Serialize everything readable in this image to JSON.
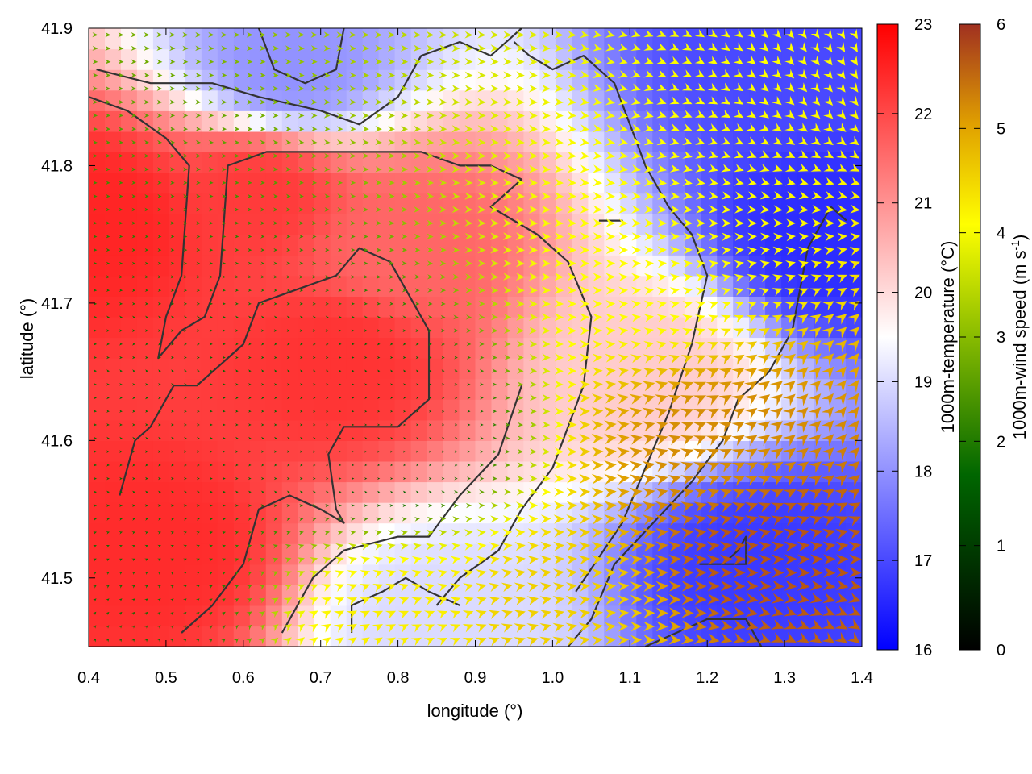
{
  "chart_data": {
    "type": "heatmap",
    "xlabel": "longitude (°)",
    "ylabel": "latitude (°)",
    "xlim": [
      0.4,
      1.4
    ],
    "ylim": [
      41.45,
      41.9
    ],
    "x_ticks": [
      "0.4",
      "0.5",
      "0.6",
      "0.7",
      "0.8",
      "0.9",
      "1.0",
      "1.1",
      "1.2",
      "1.3",
      "1.4"
    ],
    "y_ticks": [
      "41.5",
      "41.6",
      "41.7",
      "41.8",
      "41.9"
    ],
    "temperature": {
      "label": "1000m-temperature (°C)",
      "range": [
        16,
        23
      ],
      "ticks": [
        "16",
        "17",
        "18",
        "19",
        "20",
        "21",
        "22",
        "23"
      ],
      "colors": [
        "#0000ff",
        "#ffffff",
        "#ff0000"
      ],
      "hotspots": [
        {
          "lon": 0.42,
          "lat": 41.76,
          "temp": 22.5
        },
        {
          "lon": 0.62,
          "lat": 41.78,
          "temp": 22.2
        },
        {
          "lon": 0.72,
          "lat": 41.66,
          "temp": 22.3
        },
        {
          "lon": 0.48,
          "lat": 41.52,
          "temp": 22.4
        },
        {
          "lon": 0.8,
          "lat": 41.74,
          "temp": 21.6
        },
        {
          "lon": 0.66,
          "lat": 41.87,
          "temp": 18.0
        },
        {
          "lon": 1.3,
          "lat": 41.88,
          "temp": 17.0
        },
        {
          "lon": 1.36,
          "lat": 41.75,
          "temp": 16.6
        },
        {
          "lon": 1.27,
          "lat": 41.51,
          "temp": 16.8
        },
        {
          "lon": 0.86,
          "lat": 41.47,
          "temp": 19.0
        },
        {
          "lon": 1.12,
          "lat": 41.65,
          "temp": 20.2
        }
      ]
    },
    "wind_speed": {
      "label": "1000m-wind speed (m s-1)",
      "label_main": "1000m-wind speed (m s",
      "label_sup": "-1",
      "label_close": ")",
      "range": [
        0,
        6
      ],
      "ticks": [
        "0",
        "1",
        "2",
        "3",
        "4",
        "5",
        "6"
      ],
      "colors": [
        "#000000",
        "#006600",
        "#88bb00",
        "#ffff00",
        "#e0a000",
        "#a03020"
      ],
      "hotspots": [
        {
          "lon": 1.28,
          "lat": 41.52,
          "speed": 5.6
        },
        {
          "lon": 1.22,
          "lat": 41.6,
          "speed": 5.0
        },
        {
          "lon": 1.0,
          "lat": 41.47,
          "speed": 4.2
        },
        {
          "lon": 0.8,
          "lat": 41.47,
          "speed": 3.8
        },
        {
          "lon": 1.15,
          "lat": 41.72,
          "speed": 3.6
        },
        {
          "lon": 0.55,
          "lat": 41.6,
          "speed": 1.2
        },
        {
          "lon": 0.78,
          "lat": 41.6,
          "speed": 1.0
        },
        {
          "lon": 0.45,
          "lat": 41.48,
          "speed": 1.3
        }
      ]
    },
    "contours": [
      [
        [
          0.41,
          41.87
        ],
        [
          0.48,
          41.86
        ],
        [
          0.56,
          41.86
        ],
        [
          0.62,
          41.85
        ],
        [
          0.7,
          41.84
        ],
        [
          0.75,
          41.83
        ],
        [
          0.8,
          41.85
        ],
        [
          0.83,
          41.88
        ],
        [
          0.88,
          41.89
        ],
        [
          0.92,
          41.88
        ],
        [
          0.96,
          41.9
        ]
      ],
      [
        [
          0.4,
          41.85
        ],
        [
          0.45,
          41.84
        ],
        [
          0.5,
          41.82
        ],
        [
          0.53,
          41.8
        ],
        [
          0.52,
          41.72
        ],
        [
          0.5,
          41.69
        ],
        [
          0.49,
          41.66
        ],
        [
          0.52,
          41.68
        ],
        [
          0.55,
          41.69
        ],
        [
          0.57,
          41.72
        ],
        [
          0.58,
          41.8
        ],
        [
          0.63,
          41.81
        ],
        [
          0.7,
          41.81
        ],
        [
          0.77,
          41.81
        ],
        [
          0.83,
          41.81
        ],
        [
          0.88,
          41.8
        ],
        [
          0.92,
          41.8
        ],
        [
          0.96,
          41.79
        ],
        [
          0.92,
          41.77
        ],
        [
          0.98,
          41.75
        ],
        [
          1.02,
          41.73
        ],
        [
          1.05,
          41.69
        ],
        [
          1.04,
          41.64
        ],
        [
          1.0,
          41.58
        ],
        [
          0.96,
          41.55
        ],
        [
          0.93,
          41.52
        ],
        [
          0.88,
          41.5
        ],
        [
          0.85,
          41.48
        ]
      ],
      [
        [
          0.51,
          41.64
        ],
        [
          0.54,
          41.64
        ],
        [
          0.6,
          41.67
        ],
        [
          0.62,
          41.7
        ],
        [
          0.67,
          41.71
        ],
        [
          0.72,
          41.72
        ],
        [
          0.75,
          41.74
        ],
        [
          0.79,
          41.73
        ],
        [
          0.84,
          41.68
        ],
        [
          0.84,
          41.63
        ],
        [
          0.8,
          41.61
        ],
        [
          0.73,
          41.61
        ],
        [
          0.71,
          41.59
        ],
        [
          0.72,
          41.55
        ],
        [
          0.73,
          41.54
        ],
        [
          0.7,
          41.55
        ],
        [
          0.66,
          41.56
        ],
        [
          0.62,
          41.55
        ],
        [
          0.6,
          41.51
        ],
        [
          0.56,
          41.48
        ],
        [
          0.52,
          41.46
        ]
      ],
      [
        [
          0.44,
          41.56
        ],
        [
          0.46,
          41.6
        ],
        [
          0.48,
          41.61
        ],
        [
          0.5,
          41.63
        ],
        [
          0.51,
          41.64
        ]
      ],
      [
        [
          0.65,
          41.46
        ],
        [
          0.69,
          41.5
        ],
        [
          0.73,
          41.52
        ],
        [
          0.8,
          41.53
        ],
        [
          0.84,
          41.53
        ],
        [
          0.88,
          41.56
        ],
        [
          0.93,
          41.59
        ],
        [
          0.96,
          41.64
        ]
      ],
      [
        [
          0.74,
          41.46
        ],
        [
          0.74,
          41.48
        ],
        [
          0.78,
          41.49
        ],
        [
          0.81,
          41.5
        ],
        [
          0.84,
          41.49
        ],
        [
          0.88,
          41.48
        ]
      ],
      [
        [
          1.02,
          41.45
        ],
        [
          1.05,
          41.47
        ],
        [
          1.08,
          41.51
        ],
        [
          1.13,
          41.54
        ],
        [
          1.18,
          41.57
        ],
        [
          1.22,
          41.6
        ],
        [
          1.24,
          41.63
        ],
        [
          1.28,
          41.65
        ],
        [
          1.31,
          41.68
        ],
        [
          1.32,
          41.71
        ],
        [
          1.33,
          41.74
        ],
        [
          1.36,
          41.77
        ],
        [
          1.38,
          41.76
        ]
      ],
      [
        [
          1.03,
          41.49
        ],
        [
          1.09,
          41.54
        ],
        [
          1.12,
          41.58
        ],
        [
          1.15,
          41.62
        ],
        [
          1.18,
          41.67
        ],
        [
          1.2,
          41.72
        ],
        [
          1.18,
          41.75
        ],
        [
          1.15,
          41.77
        ],
        [
          1.12,
          41.8
        ],
        [
          1.1,
          41.83
        ],
        [
          1.08,
          41.86
        ],
        [
          1.04,
          41.88
        ],
        [
          1.0,
          41.87
        ],
        [
          0.97,
          41.88
        ],
        [
          0.95,
          41.89
        ]
      ],
      [
        [
          1.12,
          41.45
        ],
        [
          1.16,
          41.46
        ],
        [
          1.2,
          41.47
        ],
        [
          1.25,
          41.47
        ],
        [
          1.27,
          41.45
        ]
      ],
      [
        [
          1.19,
          41.51
        ],
        [
          1.23,
          41.51
        ],
        [
          1.25,
          41.51
        ],
        [
          1.25,
          41.53
        ],
        [
          1.24,
          41.52
        ],
        [
          1.22,
          41.51
        ]
      ],
      [
        [
          0.62,
          41.9
        ],
        [
          0.64,
          41.87
        ],
        [
          0.68,
          41.86
        ],
        [
          0.72,
          41.87
        ],
        [
          0.73,
          41.9
        ]
      ],
      [
        [
          1.06,
          41.76
        ],
        [
          1.08,
          41.76
        ],
        [
          1.09,
          41.76
        ],
        [
          1.07,
          41.76
        ],
        [
          1.06,
          41.76
        ]
      ]
    ]
  }
}
